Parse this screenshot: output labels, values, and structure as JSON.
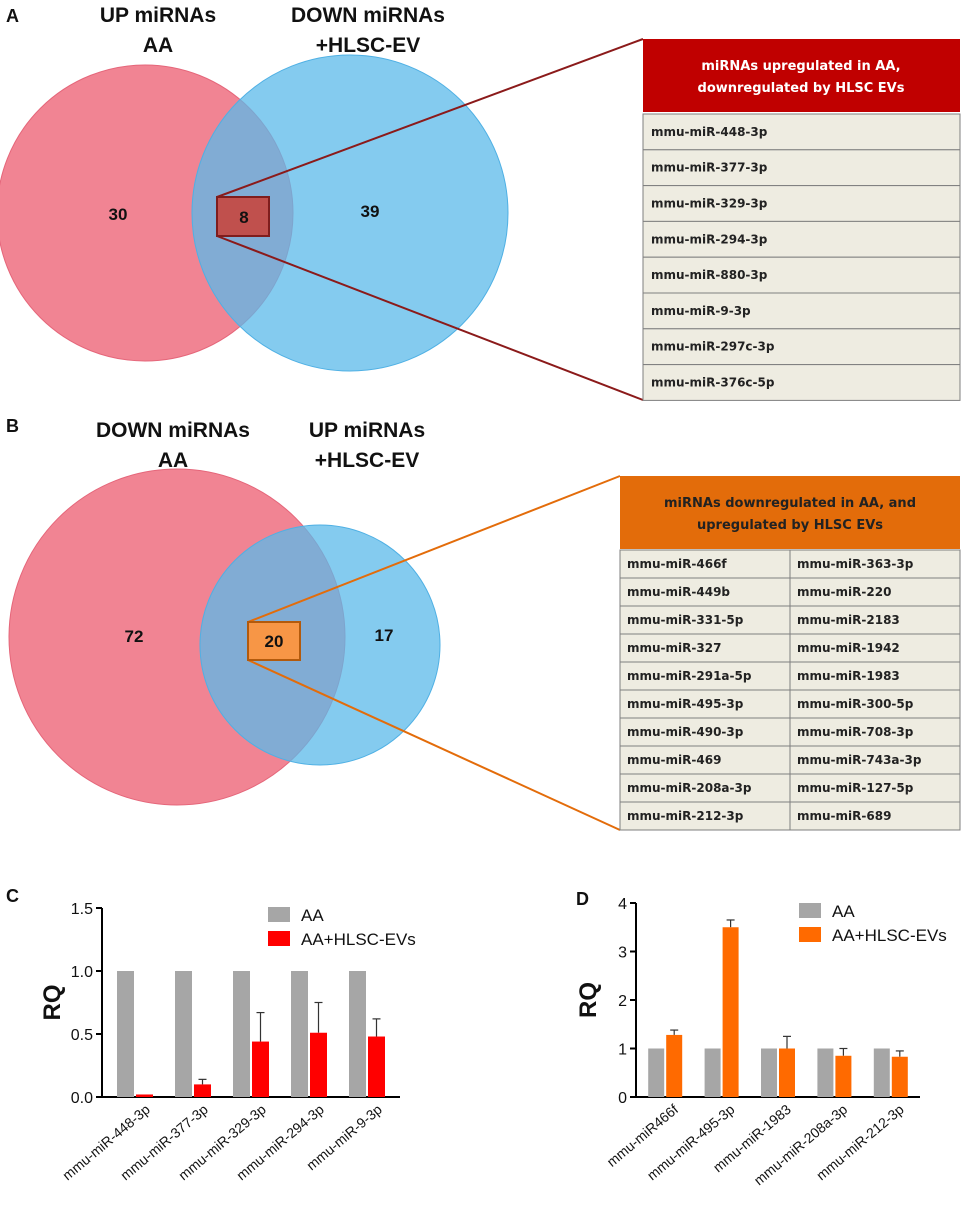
{
  "panels": {
    "a": {
      "letter": "A"
    },
    "b": {
      "letter": "B"
    },
    "c": {
      "letter": "C"
    },
    "d": {
      "letter": "D"
    }
  },
  "venn_a": {
    "left_title": [
      "UP miRNAs",
      "AA"
    ],
    "right_title": [
      "DOWN miRNAs",
      "+HLSC-EV"
    ],
    "left_count": "30",
    "overlap_count": "8",
    "right_count": "39",
    "colors": {
      "left": "#ef6f80",
      "right": "#6cc3ef",
      "overlap_box": "#c0504d",
      "line": "#8b1a1a"
    },
    "table_title": [
      "miRNAs upregulated in AA,",
      "downregulated by HLSC EVs"
    ],
    "table_header_color": "#c00000",
    "rows": [
      "mmu-miR-448-3p",
      "mmu-miR-377-3p",
      "mmu-miR-329-3p",
      "mmu-miR-294-3p",
      "mmu-miR-880-3p",
      "mmu-miR-9-3p",
      "mmu-miR-297c-3p",
      "mmu-miR-376c-5p"
    ]
  },
  "venn_b": {
    "left_title": [
      "DOWN miRNAs",
      "AA"
    ],
    "right_title": [
      "UP miRNAs",
      "+HLSC-EV"
    ],
    "left_count": "72",
    "overlap_count": "20",
    "right_count": "17",
    "colors": {
      "left": "#ef6f80",
      "right": "#6cc3ef",
      "overlap_box": "#f79646",
      "line": "#e36c0a"
    },
    "table_title": [
      "miRNAs downregulated in AA, and",
      "upregulated by HLSC EVs"
    ],
    "table_header_color": "#e36c0a",
    "rows_left": [
      "mmu-miR-466f",
      "mmu-miR-449b",
      "mmu-miR-331-5p",
      "mmu-miR-327",
      "mmu-miR-291a-5p",
      "mmu-miR-495-3p",
      "mmu-miR-490-3p",
      "mmu-miR-469",
      "mmu-miR-208a-3p",
      "mmu-miR-212-3p"
    ],
    "rows_right": [
      "mmu-miR-363-3p",
      "mmu-miR-220",
      "mmu-miR-2183",
      "mmu-miR-1942",
      "mmu-miR-1983",
      "mmu-miR-300-5p",
      "mmu-miR-708-3p",
      "mmu-miR-743a-3p",
      "mmu-miR-127-5p",
      "mmu-miR-689"
    ]
  },
  "chart_data": [
    {
      "type": "bar",
      "panel": "C",
      "ylabel": "RQ",
      "ylim": [
        0,
        1.5
      ],
      "yticks": [
        "0.0",
        "0.5",
        "1.0",
        "1.5"
      ],
      "ytick_values": [
        0,
        0.5,
        1.0,
        1.5
      ],
      "categories": [
        "mmu-miR-448-3p",
        "mmu-miR-377-3p",
        "mmu-miR-329-3p",
        "mmu-miR-294-3p",
        "mmu-miR-9-3p"
      ],
      "series": [
        {
          "name": "AA",
          "color": "#a6a6a6",
          "values": [
            1.0,
            1.0,
            1.0,
            1.0,
            1.0
          ],
          "errors": [
            0,
            0,
            0,
            0,
            0
          ]
        },
        {
          "name": "AA+HLSC-EVs",
          "color": "#ff0000",
          "values": [
            0.02,
            0.1,
            0.44,
            0.51,
            0.48
          ],
          "errors": [
            0,
            0.04,
            0.23,
            0.24,
            0.14
          ]
        }
      ],
      "legend": "top-right"
    },
    {
      "type": "bar",
      "panel": "D",
      "ylabel": "RQ",
      "ylim": [
        0,
        4
      ],
      "yticks": [
        "0",
        "1",
        "2",
        "3",
        "4"
      ],
      "ytick_values": [
        0,
        1,
        2,
        3,
        4
      ],
      "categories": [
        "mmu-miR466f",
        "mmu-miR-495-3p",
        "mmu-miR-1983",
        "mmu-miR-208a-3p",
        "mmu-miR-212-3p"
      ],
      "series": [
        {
          "name": "AA",
          "color": "#a6a6a6",
          "values": [
            1.0,
            1.0,
            1.0,
            1.0,
            1.0
          ],
          "errors": [
            0,
            0,
            0,
            0,
            0
          ]
        },
        {
          "name": "AA+HLSC-EVs",
          "color": "#ff6a00",
          "values": [
            1.28,
            3.5,
            1.0,
            0.85,
            0.83
          ],
          "errors": [
            0.1,
            0.15,
            0.25,
            0.15,
            0.12
          ]
        }
      ],
      "legend": "top-right"
    }
  ]
}
